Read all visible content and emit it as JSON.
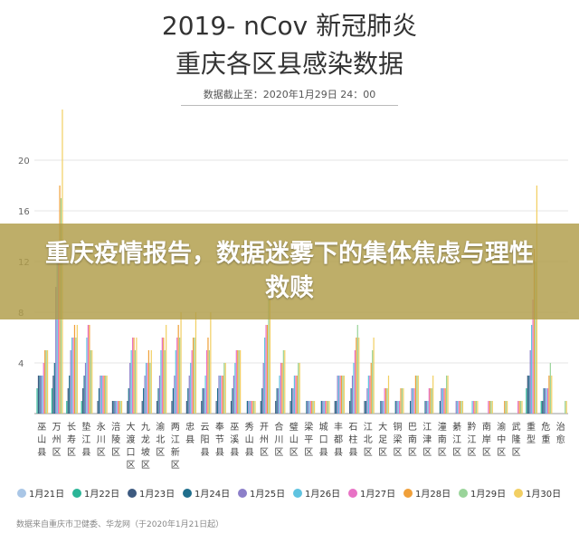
{
  "banner": {
    "headline": "重庆疫情报告，数据迷雾下的集体焦虑与理性救赎"
  },
  "source_note": "数据来自重庆市卫健委、华龙网（于2020年1月21日起）",
  "chart_data": {
    "type": "bar",
    "title_line1": "2019- nCov 新冠肺炎",
    "title_line2": "重庆各区县感染数据",
    "subtitle": "数据截止至：2020年1月29日 24：00",
    "ylim": [
      0,
      24
    ],
    "yticks": [
      4,
      8,
      12,
      16,
      20
    ],
    "grid": true,
    "legend_position": "bottom",
    "categories": [
      "巫山县",
      "万州区",
      "长寿区",
      "垫江县",
      "永川区",
      "涪陵区",
      "大渡口区",
      "九龙坡区",
      "渝北区",
      "两江新区",
      "忠县",
      "云阳县",
      "奉节县",
      "巫溪县",
      "秀山县",
      "开州区",
      "合川区",
      "璧山区",
      "梁平区",
      "城口县",
      "丰都县",
      "石柱县",
      "江北区",
      "大足区",
      "铜梁区",
      "巴南区",
      "江津区",
      "潼南区",
      "綦江区",
      "黔江区",
      "南岸区",
      "渝中区",
      "武隆区",
      "重型",
      "危重",
      "治愈"
    ],
    "series": [
      {
        "name": "1月21日",
        "color": "#a9c6e6",
        "values": [
          0,
          0,
          0,
          0,
          0,
          0,
          0,
          0,
          0,
          0,
          0,
          0,
          0,
          0,
          0,
          0,
          0,
          0,
          0,
          0,
          0,
          0,
          0,
          0,
          0,
          0,
          0,
          0,
          0,
          0,
          0,
          0,
          0,
          0,
          0,
          0
        ]
      },
      {
        "name": "1月22日",
        "color": "#2bb597",
        "values": [
          2,
          2,
          1,
          1,
          0,
          0,
          0,
          0,
          0,
          0,
          0,
          0,
          0,
          0,
          0,
          0,
          0,
          0,
          0,
          0,
          0,
          0,
          0,
          0,
          0,
          0,
          0,
          0,
          0,
          0,
          0,
          0,
          0,
          2,
          1,
          0
        ]
      },
      {
        "name": "1月23日",
        "color": "#3d5a80",
        "values": [
          3,
          3,
          2,
          2,
          1,
          1,
          1,
          1,
          1,
          1,
          1,
          1,
          1,
          1,
          0,
          1,
          1,
          1,
          0,
          0,
          1,
          1,
          1,
          0,
          0,
          0,
          0,
          0,
          0,
          0,
          0,
          0,
          0,
          3,
          1,
          0
        ]
      },
      {
        "name": "1月24日",
        "color": "#1f6e8c",
        "values": [
          3,
          4,
          3,
          3,
          2,
          1,
          2,
          2,
          2,
          2,
          2,
          2,
          2,
          2,
          1,
          2,
          2,
          2,
          1,
          1,
          1,
          2,
          1,
          1,
          1,
          1,
          1,
          1,
          0,
          0,
          0,
          0,
          0,
          3,
          2,
          0
        ]
      },
      {
        "name": "1月25日",
        "color": "#8c7fc9",
        "values": [
          3,
          10,
          5,
          4,
          3,
          1,
          4,
          3,
          3,
          3,
          3,
          2,
          3,
          3,
          1,
          4,
          2,
          2,
          1,
          1,
          3,
          3,
          2,
          1,
          1,
          2,
          1,
          2,
          1,
          0,
          0,
          0,
          0,
          5,
          2,
          0
        ]
      },
      {
        "name": "1月26日",
        "color": "#5fc3e0",
        "values": [
          3,
          12,
          6,
          6,
          3,
          1,
          5,
          4,
          5,
          5,
          4,
          3,
          3,
          4,
          1,
          6,
          3,
          3,
          1,
          1,
          3,
          4,
          3,
          1,
          1,
          2,
          1,
          2,
          1,
          1,
          0,
          0,
          0,
          7,
          2,
          0
        ]
      },
      {
        "name": "1月27日",
        "color": "#e872c5",
        "values": [
          4,
          13,
          6,
          7,
          3,
          1,
          6,
          4,
          6,
          6,
          5,
          5,
          3,
          5,
          1,
          7,
          4,
          3,
          1,
          1,
          3,
          5,
          3,
          2,
          1,
          2,
          2,
          2,
          1,
          1,
          1,
          0,
          1,
          9,
          2,
          0
        ]
      },
      {
        "name": "1月28日",
        "color": "#f0a03a",
        "values": [
          5,
          18,
          7,
          7,
          3,
          1,
          6,
          5,
          6,
          7,
          6,
          6,
          3,
          5,
          1,
          7,
          4,
          3,
          1,
          1,
          3,
          6,
          4,
          2,
          2,
          3,
          2,
          2,
          1,
          1,
          1,
          1,
          1,
          13,
          3,
          0
        ]
      },
      {
        "name": "1月29日",
        "color": "#9ad49a",
        "values": [
          5,
          17,
          6,
          5,
          3,
          1,
          5,
          4,
          5,
          6,
          6,
          5,
          4,
          5,
          1,
          9,
          5,
          4,
          1,
          1,
          3,
          7,
          5,
          2,
          2,
          3,
          2,
          3,
          1,
          1,
          1,
          1,
          1,
          12,
          4,
          1
        ]
      },
      {
        "name": "1月30日",
        "color": "#f2cf63",
        "values": [
          5,
          24,
          7,
          5,
          3,
          1,
          6,
          5,
          7,
          8,
          8,
          8,
          4,
          5,
          1,
          9,
          5,
          4,
          1,
          1,
          3,
          6,
          6,
          3,
          2,
          3,
          3,
          3,
          1,
          1,
          1,
          1,
          1,
          18,
          3,
          1
        ]
      }
    ]
  }
}
